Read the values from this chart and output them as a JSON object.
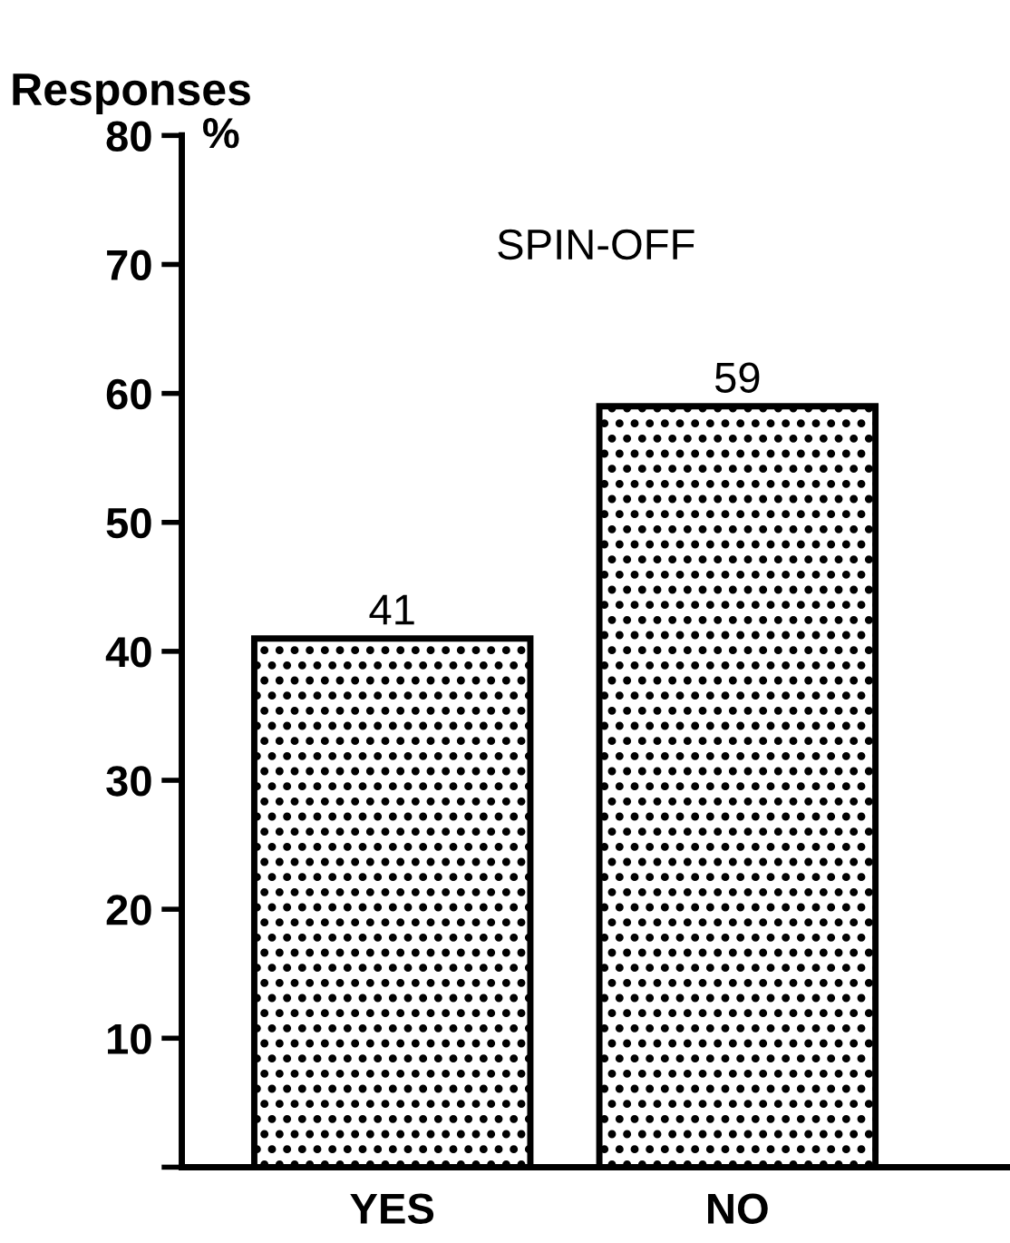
{
  "chart_data": {
    "type": "bar",
    "title": "SPIN-OFF",
    "ylabel": "Responses",
    "annotations": [
      "%"
    ],
    "categories": [
      "YES",
      "NO"
    ],
    "values": [
      41,
      59
    ],
    "color": "#000000",
    "ylim": [
      0,
      80
    ],
    "yticks": [
      {
        "value": 0,
        "label": null
      },
      10,
      20,
      30,
      40,
      50,
      60,
      70,
      80
    ],
    "grid": false,
    "data_labels": true
  }
}
